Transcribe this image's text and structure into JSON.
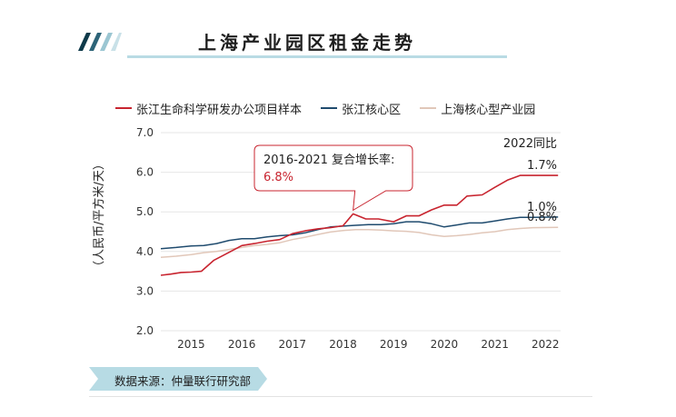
{
  "header": {
    "title": "上海产业园区租金走势"
  },
  "chart_data": {
    "type": "line",
    "title": "上海产业园区租金走势",
    "ylabel": "（人民币/平方米/天）",
    "xlabel": "",
    "ylim": [
      2.0,
      7.0
    ],
    "yticks": [
      "2.0",
      "3.0",
      "4.0",
      "5.0",
      "6.0",
      "7.0"
    ],
    "xticks": [
      "2015",
      "2016",
      "2017",
      "2018",
      "2019",
      "2020",
      "2021",
      "2022"
    ],
    "grid": true,
    "legend_position": "top",
    "series": [
      {
        "name": "张江生命科学研发办公项目样本",
        "color": "#c8242f",
        "points": [
          [
            2014.4,
            3.4
          ],
          [
            2014.6,
            3.43
          ],
          [
            2014.8,
            3.47
          ],
          [
            2015.0,
            3.48
          ],
          [
            2015.2,
            3.5
          ],
          [
            2015.45,
            3.78
          ],
          [
            2015.75,
            3.98
          ],
          [
            2016.0,
            4.15
          ],
          [
            2016.25,
            4.2
          ],
          [
            2016.5,
            4.26
          ],
          [
            2016.75,
            4.3
          ],
          [
            2017.0,
            4.45
          ],
          [
            2017.25,
            4.52
          ],
          [
            2017.5,
            4.57
          ],
          [
            2017.75,
            4.6
          ],
          [
            2018.0,
            4.65
          ],
          [
            2018.2,
            4.95
          ],
          [
            2018.45,
            4.82
          ],
          [
            2018.7,
            4.82
          ],
          [
            2019.0,
            4.75
          ],
          [
            2019.25,
            4.9
          ],
          [
            2019.5,
            4.9
          ],
          [
            2019.75,
            5.05
          ],
          [
            2020.0,
            5.17
          ],
          [
            2020.25,
            5.17
          ],
          [
            2020.45,
            5.4
          ],
          [
            2020.75,
            5.43
          ],
          [
            2021.0,
            5.62
          ],
          [
            2021.25,
            5.8
          ],
          [
            2021.5,
            5.92
          ],
          [
            2021.75,
            5.92
          ],
          [
            2022.25,
            5.92
          ]
        ]
      },
      {
        "name": "张江核心区",
        "color": "#1f4b6e",
        "points": [
          [
            2014.4,
            4.07
          ],
          [
            2014.7,
            4.1
          ],
          [
            2015.0,
            4.14
          ],
          [
            2015.25,
            4.15
          ],
          [
            2015.5,
            4.2
          ],
          [
            2015.75,
            4.28
          ],
          [
            2016.0,
            4.32
          ],
          [
            2016.25,
            4.32
          ],
          [
            2016.5,
            4.37
          ],
          [
            2016.75,
            4.4
          ],
          [
            2017.0,
            4.42
          ],
          [
            2017.25,
            4.47
          ],
          [
            2017.5,
            4.55
          ],
          [
            2017.75,
            4.62
          ],
          [
            2018.0,
            4.64
          ],
          [
            2018.25,
            4.66
          ],
          [
            2018.5,
            4.68
          ],
          [
            2018.75,
            4.68
          ],
          [
            2019.0,
            4.7
          ],
          [
            2019.25,
            4.75
          ],
          [
            2019.5,
            4.75
          ],
          [
            2019.75,
            4.7
          ],
          [
            2020.0,
            4.62
          ],
          [
            2020.25,
            4.67
          ],
          [
            2020.5,
            4.72
          ],
          [
            2020.75,
            4.72
          ],
          [
            2021.0,
            4.77
          ],
          [
            2021.25,
            4.82
          ],
          [
            2021.5,
            4.86
          ],
          [
            2021.75,
            4.86
          ],
          [
            2022.25,
            4.87
          ]
        ]
      },
      {
        "name": "上海核心型产业园",
        "color": "#e1c7b9",
        "points": [
          [
            2014.4,
            3.85
          ],
          [
            2014.7,
            3.88
          ],
          [
            2015.0,
            3.92
          ],
          [
            2015.25,
            3.97
          ],
          [
            2015.5,
            4.0
          ],
          [
            2015.75,
            4.05
          ],
          [
            2016.0,
            4.1
          ],
          [
            2016.25,
            4.15
          ],
          [
            2016.5,
            4.18
          ],
          [
            2016.75,
            4.22
          ],
          [
            2017.0,
            4.3
          ],
          [
            2017.25,
            4.36
          ],
          [
            2017.5,
            4.43
          ],
          [
            2017.75,
            4.49
          ],
          [
            2018.0,
            4.53
          ],
          [
            2018.25,
            4.55
          ],
          [
            2018.5,
            4.55
          ],
          [
            2018.75,
            4.54
          ],
          [
            2019.0,
            4.52
          ],
          [
            2019.25,
            4.51
          ],
          [
            2019.5,
            4.48
          ],
          [
            2019.75,
            4.42
          ],
          [
            2020.0,
            4.38
          ],
          [
            2020.25,
            4.4
          ],
          [
            2020.5,
            4.43
          ],
          [
            2020.75,
            4.47
          ],
          [
            2021.0,
            4.5
          ],
          [
            2021.25,
            4.55
          ],
          [
            2021.5,
            4.58
          ],
          [
            2021.75,
            4.6
          ],
          [
            2022.25,
            4.61
          ]
        ]
      }
    ],
    "yoy_header": "2022同比",
    "yoy_labels": [
      {
        "series": 0,
        "text": "1.7%"
      },
      {
        "series": 1,
        "text": "1.0%"
      },
      {
        "series": 2,
        "text": "0.8%"
      }
    ],
    "callout": {
      "line1": "2016-2021 复合增长率:",
      "line2": "6.8%",
      "color": "#c8242f",
      "anchor": [
        2018.2,
        4.95
      ]
    }
  },
  "footer": {
    "source": "数据来源：仲量联行研究部"
  },
  "colors": {
    "title_rule": "#b9dbe4",
    "stripe": "#0f3a4a",
    "stripe_light": "#9bc6d2",
    "source_ribbon": "#b7dbe4"
  }
}
